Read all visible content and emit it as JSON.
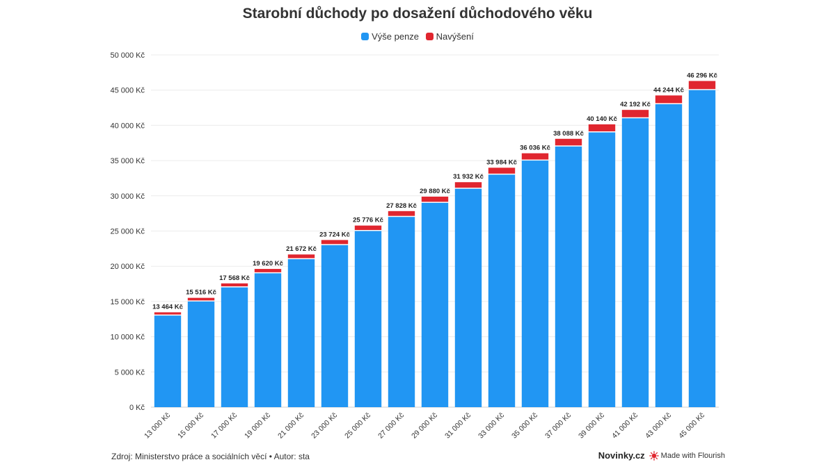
{
  "header": {
    "title": "Starobní důchody po dosažení důchodového věku"
  },
  "chart_data": {
    "type": "bar",
    "stacked": true,
    "title": "Starobní důchody po dosažení důchodového věku",
    "xlabel": "",
    "ylabel": "",
    "ylim": [
      0,
      50000
    ],
    "y_ticks": [
      "0 Kč",
      "5 000 Kč",
      "10 000 Kč",
      "15 000 Kč",
      "20 000 Kč",
      "25 000 Kč",
      "30 000 Kč",
      "35 000 Kč",
      "40 000 Kč",
      "45 000 Kč",
      "50 000 Kč"
    ],
    "y_tick_values": [
      0,
      5000,
      10000,
      15000,
      20000,
      25000,
      30000,
      35000,
      40000,
      45000,
      50000
    ],
    "categories": [
      "13 000 Kč",
      "15 000 Kč",
      "17 000 Kč",
      "19 000 Kč",
      "21 000 Kč",
      "23 000 Kč",
      "25 000 Kč",
      "27 000 Kč",
      "29 000 Kč",
      "31 000 Kč",
      "33 000 Kč",
      "35 000 Kč",
      "37 000 Kč",
      "39 000 Kč",
      "41 000 Kč",
      "43 000 Kč",
      "45 000 Kč"
    ],
    "series": [
      {
        "name": "Výše penze",
        "color": "#2196f3",
        "values": [
          13000,
          15000,
          17000,
          19000,
          21000,
          23000,
          25000,
          27000,
          29000,
          31000,
          33000,
          35000,
          37000,
          39000,
          41000,
          43000,
          45000
        ]
      },
      {
        "name": "Navýšení",
        "color": "#e0262f",
        "values": [
          464,
          516,
          568,
          620,
          672,
          724,
          776,
          828,
          880,
          932,
          984,
          1036,
          1088,
          1140,
          1192,
          1244,
          1296
        ]
      }
    ],
    "total_labels": [
      "13 464 Kč",
      "15 516 Kč",
      "17 568 Kč",
      "19 620 Kč",
      "21 672 Kč",
      "23 724 Kč",
      "25 776 Kč",
      "27 828 Kč",
      "29 880 Kč",
      "31 932 Kč",
      "33 984 Kč",
      "36 036 Kč",
      "38 088 Kč",
      "40 140 Kč",
      "42 192 Kč",
      "44 244 Kč",
      "46 296 Kč"
    ],
    "legend_position": "top-center",
    "grid": true
  },
  "footer": {
    "source": "Zdroj: Ministerstvo práce a sociálních věcí • Autor: sta",
    "brand": "Novinky.cz",
    "made_with": "Made with Flourish"
  }
}
